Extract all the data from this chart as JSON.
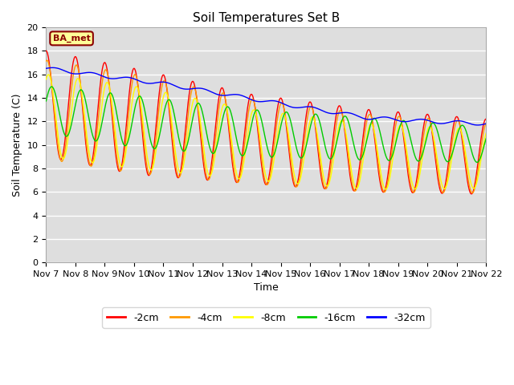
{
  "title": "Soil Temperatures Set B",
  "xlabel": "Time",
  "ylabel": "Soil Temperature (C)",
  "ylim": [
    0,
    20
  ],
  "yticks": [
    0,
    2,
    4,
    6,
    8,
    10,
    12,
    14,
    16,
    18,
    20
  ],
  "xtick_labels": [
    "Nov 7",
    "Nov 8",
    "Nov 9",
    "Nov 10",
    "Nov 11",
    "Nov 12",
    "Nov 13",
    "Nov 14",
    "Nov 15",
    "Nov 16",
    "Nov 17",
    "Nov 18",
    "Nov 19",
    "Nov 20",
    "Nov 21",
    "Nov 22"
  ],
  "series_labels": [
    "-2cm",
    "-4cm",
    "-8cm",
    "-16cm",
    "-32cm"
  ],
  "series_colors": [
    "#ff0000",
    "#ff9900",
    "#ffff00",
    "#00cc00",
    "#0000ff"
  ],
  "legend_label": "BA_met",
  "title_fontsize": 11,
  "axis_fontsize": 9,
  "tick_fontsize": 8,
  "plot_bg": "#dedede",
  "fig_bg": "#ffffff"
}
